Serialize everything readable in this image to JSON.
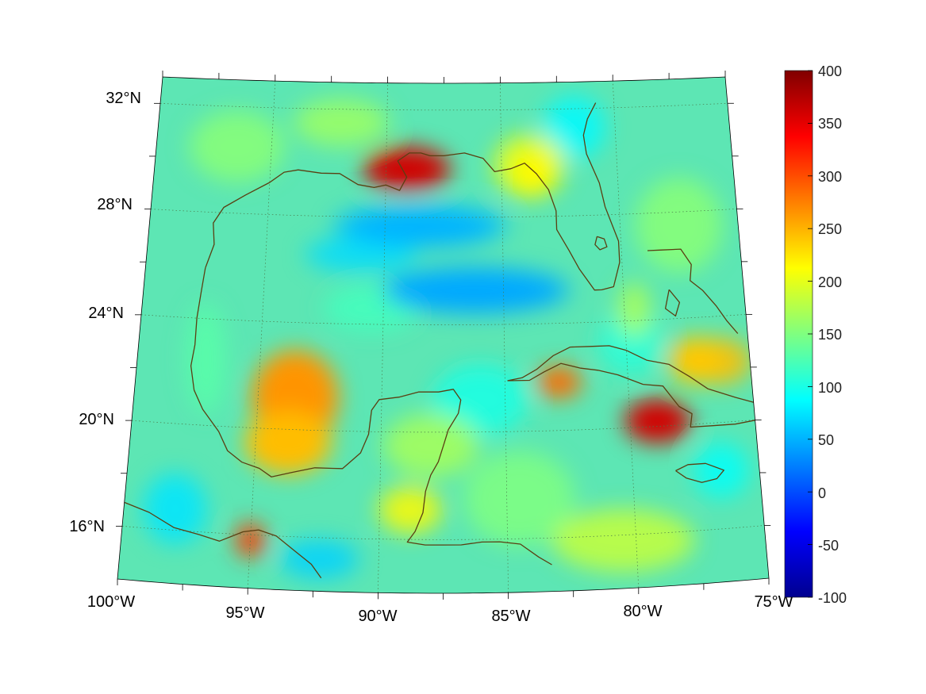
{
  "map": {
    "projection": "conic",
    "lon_range": [
      -100,
      -75
    ],
    "lat_range": [
      14,
      33
    ],
    "lon_labels": [
      "100°W",
      "95°W",
      "90°W",
      "85°W",
      "80°W",
      "75°W"
    ],
    "lat_labels": [
      "32°N",
      "28°N",
      "24°N",
      "20°N",
      "16°N"
    ],
    "gridlines": true,
    "coastline_color": "#5a3f12",
    "field_hotspots": [
      {
        "name": "mississippi-delta",
        "lon": -89.1,
        "lat": 29.8,
        "value": 360
      },
      {
        "name": "bay-of-campeche-west",
        "lon": -93.5,
        "lat": 21.2,
        "value": 265
      },
      {
        "name": "bay-of-campeche-south",
        "lon": -93.7,
        "lat": 19.5,
        "value": 245
      },
      {
        "name": "eastern-cuba",
        "lon": -78.9,
        "lat": 20.2,
        "value": 360
      },
      {
        "name": "western-cuba",
        "lon": -82.8,
        "lat": 21.8,
        "value": 285
      },
      {
        "name": "tehuantepec",
        "lon": -95.0,
        "lat": 15.8,
        "value": 310
      },
      {
        "name": "florida-central",
        "lon": -83.6,
        "lat": 29.6,
        "value": 215
      },
      {
        "name": "northern-bahamas",
        "lon": -77.2,
        "lat": 22.4,
        "value": 240
      },
      {
        "name": "central-gulf-low",
        "lon": -86.3,
        "lat": 25.2,
        "value": 45
      },
      {
        "name": "northern-gulf-low",
        "lon": -88.5,
        "lat": 27.6,
        "value": 50
      }
    ]
  },
  "colorbar": {
    "ticks": [
      "400",
      "350",
      "300",
      "250",
      "200",
      "150",
      "100",
      "50",
      "0",
      "-50",
      "-100"
    ],
    "min": -100,
    "max": 400,
    "colormap": "jet"
  }
}
